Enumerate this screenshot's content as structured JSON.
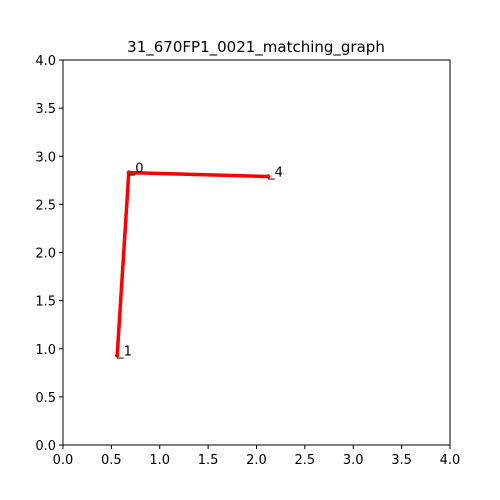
{
  "chart_data": {
    "type": "line",
    "title": "31_670FP1_0021_matching_graph",
    "xlabel": "",
    "ylabel": "",
    "xlim": [
      0.0,
      4.0
    ],
    "ylim": [
      0.0,
      4.0
    ],
    "grid": false,
    "x_ticks": [
      "0.0",
      "0.5",
      "1.0",
      "1.5",
      "2.0",
      "2.5",
      "3.0",
      "3.5",
      "4.0"
    ],
    "y_ticks": [
      "0.0",
      "0.5",
      "1.0",
      "1.5",
      "2.0",
      "2.5",
      "3.0",
      "3.5",
      "4.0"
    ],
    "nodes": [
      {
        "id": "node-0",
        "label": "_0",
        "x": 0.68,
        "y": 2.83
      },
      {
        "id": "node-1",
        "label": "_1",
        "x": 0.56,
        "y": 0.93
      },
      {
        "id": "node-4",
        "label": "_4",
        "x": 2.12,
        "y": 2.79
      }
    ],
    "edges": [
      {
        "from": "node-0",
        "to": "node-1"
      },
      {
        "from": "node-0",
        "to": "node-4"
      }
    ],
    "edge_color": "#ff0000"
  }
}
